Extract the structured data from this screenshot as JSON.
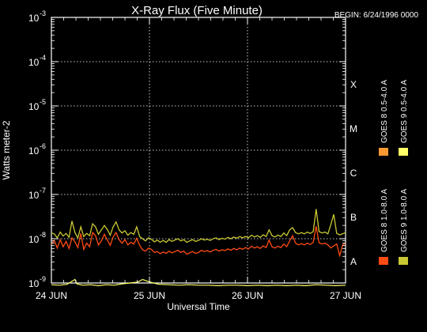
{
  "chart_data": {
    "type": "line",
    "title": "X-Ray Flux (Five Minute)",
    "subtitle": "BEGIN: 6/24/1996 0000",
    "xlabel": "Universal Time",
    "ylabel": "Watts meter-2",
    "x_ticks": [
      "24 JUN",
      "25 JUN",
      "26 JUN",
      "27 JUN"
    ],
    "x_range_days": [
      0,
      3
    ],
    "y_scale": "log",
    "y_range_exponent": [
      -9,
      -3
    ],
    "y_ticks": [
      {
        "base": "10",
        "exp": "-3",
        "value": -3
      },
      {
        "base": "10",
        "exp": "-4",
        "value": -4
      },
      {
        "base": "10",
        "exp": "-5",
        "value": -5
      },
      {
        "base": "10",
        "exp": "-6",
        "value": -6
      },
      {
        "base": "10",
        "exp": "-7",
        "value": -7
      },
      {
        "base": "10",
        "exp": "-8",
        "value": -8
      },
      {
        "base": "10",
        "exp": "-9",
        "value": -9
      }
    ],
    "flare_classes": [
      {
        "label": "X",
        "exp": -4
      },
      {
        "label": "M",
        "exp": -5
      },
      {
        "label": "C",
        "exp": -6
      },
      {
        "label": "B",
        "exp": -7
      },
      {
        "label": "A",
        "exp": -8
      }
    ],
    "grid": "dotted",
    "legend": "right",
    "series": [
      {
        "name": "GOES 8 1.0-8.0 A",
        "color": "#ff4b14",
        "points": [
          [
            0.0,
            -8.12
          ],
          [
            0.03,
            -8.04
          ],
          [
            0.06,
            -8.21
          ],
          [
            0.09,
            -8.02
          ],
          [
            0.12,
            -8.18
          ],
          [
            0.15,
            -8.06
          ],
          [
            0.18,
            -8.22
          ],
          [
            0.21,
            -7.98
          ],
          [
            0.24,
            -8.07
          ],
          [
            0.27,
            -8.2
          ],
          [
            0.3,
            -7.88
          ],
          [
            0.33,
            -8.24
          ],
          [
            0.36,
            -8.1
          ],
          [
            0.39,
            -8.18
          ],
          [
            0.42,
            -7.86
          ],
          [
            0.45,
            -7.93
          ],
          [
            0.48,
            -8.14
          ],
          [
            0.51,
            -8.05
          ],
          [
            0.54,
            -7.9
          ],
          [
            0.57,
            -8.03
          ],
          [
            0.6,
            -8.15
          ],
          [
            0.63,
            -7.96
          ],
          [
            0.66,
            -7.86
          ],
          [
            0.69,
            -8.02
          ],
          [
            0.72,
            -8.1
          ],
          [
            0.75,
            -8.02
          ],
          [
            0.78,
            -8.14
          ],
          [
            0.81,
            -8.08
          ],
          [
            0.84,
            -8.12
          ],
          [
            0.87,
            -7.99
          ],
          [
            0.9,
            -8.15
          ],
          [
            0.93,
            -8.25
          ],
          [
            0.96,
            -8.28
          ],
          [
            0.99,
            -8.21
          ],
          [
            1.02,
            -8.24
          ],
          [
            1.05,
            -8.31
          ],
          [
            1.08,
            -8.29
          ],
          [
            1.11,
            -8.34
          ],
          [
            1.14,
            -8.3
          ],
          [
            1.17,
            -8.33
          ],
          [
            1.2,
            -8.28
          ],
          [
            1.23,
            -8.32
          ],
          [
            1.26,
            -8.29
          ],
          [
            1.29,
            -8.26
          ],
          [
            1.32,
            -8.31
          ],
          [
            1.35,
            -8.28
          ],
          [
            1.38,
            -8.35
          ],
          [
            1.41,
            -8.32
          ],
          [
            1.44,
            -8.29
          ],
          [
            1.47,
            -8.33
          ],
          [
            1.5,
            -8.31
          ],
          [
            1.53,
            -8.26
          ],
          [
            1.56,
            -8.29
          ],
          [
            1.59,
            -8.27
          ],
          [
            1.62,
            -8.3
          ],
          [
            1.65,
            -8.26
          ],
          [
            1.68,
            -8.24
          ],
          [
            1.71,
            -8.28
          ],
          [
            1.74,
            -8.25
          ],
          [
            1.77,
            -8.27
          ],
          [
            1.8,
            -8.23
          ],
          [
            1.83,
            -8.26
          ],
          [
            1.86,
            -8.22
          ],
          [
            1.89,
            -8.25
          ],
          [
            1.92,
            -8.21
          ],
          [
            1.95,
            -8.24
          ],
          [
            1.98,
            -8.2
          ],
          [
            2.01,
            -8.23
          ],
          [
            2.04,
            -8.17
          ],
          [
            2.07,
            -8.21
          ],
          [
            2.1,
            -8.18
          ],
          [
            2.13,
            -8.22
          ],
          [
            2.16,
            -8.16
          ],
          [
            2.19,
            -8.2
          ],
          [
            2.22,
            -8.03
          ],
          [
            2.25,
            -8.18
          ],
          [
            2.28,
            -8.21
          ],
          [
            2.31,
            -8.17
          ],
          [
            2.34,
            -8.2
          ],
          [
            2.37,
            -8.12
          ],
          [
            2.4,
            -8.18
          ],
          [
            2.43,
            -8.05
          ],
          [
            2.46,
            -7.93
          ],
          [
            2.49,
            -8.1
          ],
          [
            2.52,
            -8.14
          ],
          [
            2.55,
            -8.11
          ],
          [
            2.58,
            -8.14
          ],
          [
            2.61,
            -8.1
          ],
          [
            2.64,
            -8.13
          ],
          [
            2.67,
            -8.08
          ],
          [
            2.7,
            -7.72
          ],
          [
            2.73,
            -8.09
          ],
          [
            2.76,
            -8.12
          ],
          [
            2.79,
            -8.1
          ],
          [
            2.82,
            -8.14
          ],
          [
            2.85,
            -8.21
          ],
          [
            2.88,
            -8.16
          ],
          [
            2.91,
            -8.12
          ],
          [
            2.94,
            -8.38
          ],
          [
            2.97,
            -8.14
          ],
          [
            3.0,
            -8.1
          ]
        ]
      },
      {
        "name": "GOES 8 0.5-4.0 A",
        "color": "#ff9933",
        "points": []
      },
      {
        "name": "GOES 9 1.0-8.0 A",
        "color": "#c8c832",
        "points": [
          [
            0.0,
            -7.87
          ],
          [
            0.03,
            -7.89
          ],
          [
            0.06,
            -7.98
          ],
          [
            0.09,
            -7.85
          ],
          [
            0.12,
            -7.94
          ],
          [
            0.15,
            -7.88
          ],
          [
            0.18,
            -7.97
          ],
          [
            0.21,
            -7.6
          ],
          [
            0.24,
            -7.86
          ],
          [
            0.27,
            -7.98
          ],
          [
            0.3,
            -7.73
          ],
          [
            0.33,
            -7.95
          ],
          [
            0.36,
            -7.88
          ],
          [
            0.39,
            -7.93
          ],
          [
            0.42,
            -7.66
          ],
          [
            0.45,
            -7.73
          ],
          [
            0.48,
            -7.9
          ],
          [
            0.51,
            -7.8
          ],
          [
            0.54,
            -7.7
          ],
          [
            0.57,
            -7.79
          ],
          [
            0.6,
            -7.92
          ],
          [
            0.63,
            -7.73
          ],
          [
            0.66,
            -7.62
          ],
          [
            0.69,
            -7.8
          ],
          [
            0.72,
            -7.87
          ],
          [
            0.75,
            -7.82
          ],
          [
            0.78,
            -7.92
          ],
          [
            0.81,
            -7.86
          ],
          [
            0.84,
            -7.9
          ],
          [
            0.87,
            -7.73
          ],
          [
            0.9,
            -7.95
          ],
          [
            0.93,
            -8.0
          ],
          [
            0.96,
            -8.05
          ],
          [
            0.99,
            -7.98
          ],
          [
            1.02,
            -8.01
          ],
          [
            1.05,
            -8.07
          ],
          [
            1.08,
            -8.03
          ],
          [
            1.11,
            -8.08
          ],
          [
            1.14,
            -8.04
          ],
          [
            1.17,
            -8.08
          ],
          [
            1.2,
            -8.02
          ],
          [
            1.23,
            -8.06
          ],
          [
            1.26,
            -8.03
          ],
          [
            1.29,
            -8.0
          ],
          [
            1.32,
            -8.05
          ],
          [
            1.35,
            -8.02
          ],
          [
            1.38,
            -8.08
          ],
          [
            1.41,
            -8.05
          ],
          [
            1.44,
            -8.02
          ],
          [
            1.47,
            -8.06
          ],
          [
            1.5,
            -8.04
          ],
          [
            1.53,
            -8.0
          ],
          [
            1.56,
            -8.03
          ],
          [
            1.59,
            -8.01
          ],
          [
            1.62,
            -8.04
          ],
          [
            1.65,
            -8.0
          ],
          [
            1.68,
            -7.98
          ],
          [
            1.71,
            -8.02
          ],
          [
            1.74,
            -7.99
          ],
          [
            1.77,
            -8.01
          ],
          [
            1.8,
            -7.97
          ],
          [
            1.83,
            -8.0
          ],
          [
            1.86,
            -7.96
          ],
          [
            1.89,
            -7.99
          ],
          [
            1.92,
            -7.95
          ],
          [
            1.95,
            -7.98
          ],
          [
            1.98,
            -7.95
          ],
          [
            2.01,
            -7.98
          ],
          [
            2.04,
            -7.92
          ],
          [
            2.07,
            -7.96
          ],
          [
            2.1,
            -7.93
          ],
          [
            2.13,
            -7.97
          ],
          [
            2.16,
            -7.91
          ],
          [
            2.19,
            -7.95
          ],
          [
            2.22,
            -7.8
          ],
          [
            2.25,
            -7.93
          ],
          [
            2.28,
            -7.96
          ],
          [
            2.31,
            -7.92
          ],
          [
            2.34,
            -7.95
          ],
          [
            2.37,
            -7.87
          ],
          [
            2.4,
            -7.93
          ],
          [
            2.43,
            -7.8
          ],
          [
            2.46,
            -7.75
          ],
          [
            2.49,
            -7.86
          ],
          [
            2.52,
            -7.89
          ],
          [
            2.55,
            -7.86
          ],
          [
            2.58,
            -7.89
          ],
          [
            2.61,
            -7.85
          ],
          [
            2.64,
            -7.88
          ],
          [
            2.67,
            -7.84
          ],
          [
            2.7,
            -7.33
          ],
          [
            2.73,
            -7.84
          ],
          [
            2.76,
            -7.87
          ],
          [
            2.79,
            -7.85
          ],
          [
            2.82,
            -7.89
          ],
          [
            2.85,
            -7.68
          ],
          [
            2.88,
            -7.45
          ],
          [
            2.91,
            -7.88
          ],
          [
            2.94,
            -7.91
          ],
          [
            2.97,
            -7.89
          ],
          [
            3.0,
            -7.86
          ]
        ]
      },
      {
        "name": "GOES 9 0.5-4.0 A",
        "color": "#ffff66",
        "points": [
          [
            0.0,
            -9.04
          ],
          [
            0.08,
            -9.05
          ],
          [
            0.16,
            -9.03
          ],
          [
            0.24,
            -8.92
          ],
          [
            0.26,
            -9.02
          ],
          [
            0.32,
            -9.05
          ],
          [
            0.4,
            -9.04
          ],
          [
            0.48,
            -9.06
          ],
          [
            0.56,
            -9.04
          ],
          [
            0.64,
            -9.05
          ],
          [
            0.72,
            -9.02
          ],
          [
            0.8,
            -9.0
          ],
          [
            0.88,
            -8.98
          ],
          [
            0.93,
            -8.92
          ],
          [
            0.98,
            -8.96
          ],
          [
            1.04,
            -9.0
          ],
          [
            1.1,
            -9.03
          ],
          [
            1.2,
            -9.04
          ],
          [
            1.3,
            -9.05
          ],
          [
            1.4,
            -9.04
          ],
          [
            1.5,
            -9.05
          ],
          [
            1.6,
            -9.05
          ],
          [
            1.7,
            -9.06
          ],
          [
            1.8,
            -9.05
          ],
          [
            1.9,
            -9.05
          ],
          [
            2.0,
            -9.06
          ],
          [
            2.1,
            -9.05
          ],
          [
            2.2,
            -9.06
          ],
          [
            2.3,
            -9.05
          ],
          [
            2.4,
            -9.06
          ],
          [
            2.5,
            -9.05
          ],
          [
            2.6,
            -9.06
          ],
          [
            2.7,
            -9.04
          ],
          [
            2.8,
            -9.05
          ],
          [
            2.9,
            -9.06
          ],
          [
            3.0,
            -9.05
          ]
        ]
      }
    ]
  }
}
